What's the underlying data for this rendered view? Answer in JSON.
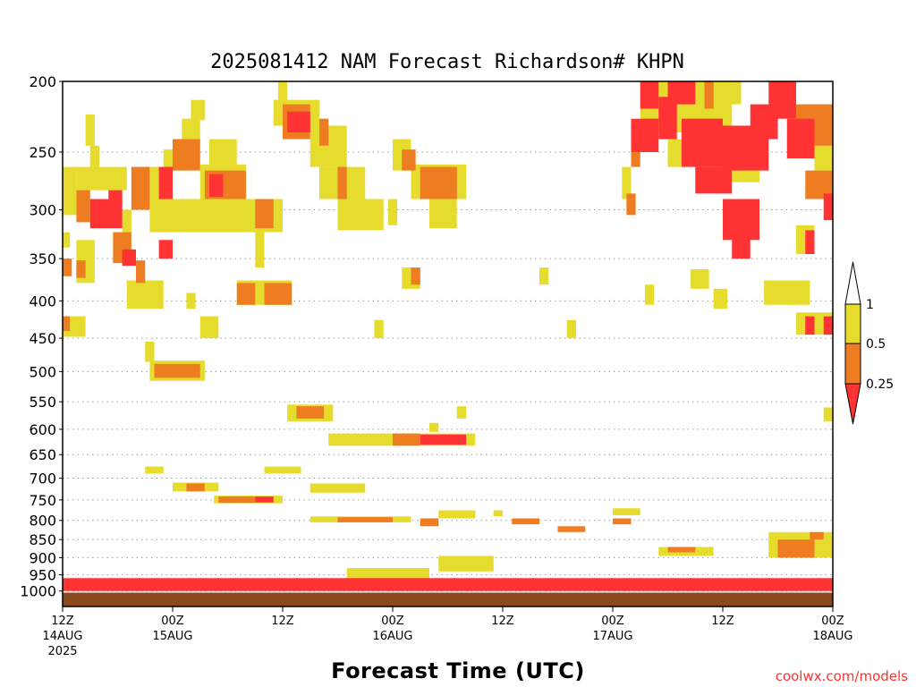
{
  "chart_data": {
    "type": "heatmap",
    "title": "2025081412 NAM Forecast Richardson# KHPN",
    "xlabel": "Forecast Time (UTC)",
    "ylabel": "",
    "credit": "coolwx.com/models",
    "x_range_hours": [
      0,
      84
    ],
    "y_axis": {
      "scale": "log",
      "range_hpa": [
        200,
        1050
      ],
      "ticks": [
        200,
        250,
        300,
        350,
        400,
        450,
        500,
        550,
        600,
        650,
        700,
        750,
        800,
        850,
        900,
        950,
        1000
      ],
      "gridlines": true
    },
    "x_ticks": [
      {
        "hour": 0,
        "lines": [
          "12Z",
          "14AUG",
          "2025"
        ]
      },
      {
        "hour": 12,
        "lines": [
          "00Z",
          "15AUG"
        ]
      },
      {
        "hour": 24,
        "lines": [
          "12Z"
        ]
      },
      {
        "hour": 36,
        "lines": [
          "00Z",
          "16AUG"
        ]
      },
      {
        "hour": 48,
        "lines": [
          "12Z"
        ]
      },
      {
        "hour": 60,
        "lines": [
          "00Z",
          "17AUG"
        ]
      },
      {
        "hour": 72,
        "lines": [
          "12Z"
        ]
      },
      {
        "hour": 84,
        "lines": [
          "00Z",
          "18AUG"
        ]
      }
    ],
    "colorbar": {
      "labels": [
        "1",
        "0.5",
        "0.25"
      ],
      "bins": [
        {
          "label": "<0.25",
          "color": "#ff3333"
        },
        {
          "label": "0.25-0.5",
          "color": "#ee7d22"
        },
        {
          "label": "0.5-1",
          "color": "#e6dc2e"
        },
        {
          "label": ">1",
          "color": "#ffffff"
        }
      ],
      "placement": "right"
    },
    "ground_color": "#8b4a1e",
    "cells": [
      {
        "h0": 0,
        "h1": 1.5,
        "p0": 262,
        "p1": 305,
        "c": "Y"
      },
      {
        "h0": 1.5,
        "h1": 7,
        "p0": 262,
        "p1": 282,
        "c": "Y"
      },
      {
        "h0": 1.5,
        "h1": 3,
        "p0": 282,
        "p1": 312,
        "c": "O"
      },
      {
        "h0": 3,
        "h1": 6.5,
        "p0": 290,
        "p1": 318,
        "c": "R"
      },
      {
        "h0": 5,
        "h1": 6.5,
        "p0": 282,
        "p1": 296,
        "c": "R"
      },
      {
        "h0": 6.5,
        "h1": 7.5,
        "p0": 300,
        "p1": 322,
        "c": "Y"
      },
      {
        "h0": 2.5,
        "h1": 3.5,
        "p0": 222,
        "p1": 245,
        "c": "Y"
      },
      {
        "h0": 3,
        "h1": 4,
        "p0": 245,
        "p1": 262,
        "c": "Y"
      },
      {
        "h0": 1.5,
        "h1": 3.5,
        "p0": 330,
        "p1": 378,
        "c": "Y"
      },
      {
        "h0": 1.5,
        "h1": 2.5,
        "p0": 352,
        "p1": 372,
        "c": "O"
      },
      {
        "h0": 0,
        "h1": 1,
        "p0": 350,
        "p1": 370,
        "c": "O"
      },
      {
        "h0": 0,
        "h1": 0.8,
        "p0": 322,
        "p1": 338,
        "c": "Y"
      },
      {
        "h0": 5.5,
        "h1": 7.5,
        "p0": 322,
        "p1": 355,
        "c": "O"
      },
      {
        "h0": 6.5,
        "h1": 8,
        "p0": 340,
        "p1": 358,
        "c": "R"
      },
      {
        "h0": 7.5,
        "h1": 9.5,
        "p0": 262,
        "p1": 300,
        "c": "O"
      },
      {
        "h0": 9.5,
        "h1": 11,
        "p0": 262,
        "p1": 290,
        "c": "Y"
      },
      {
        "h0": 8,
        "h1": 9,
        "p0": 352,
        "p1": 378,
        "c": "O"
      },
      {
        "h0": 7,
        "h1": 11,
        "p0": 375,
        "p1": 410,
        "c": "Y"
      },
      {
        "h0": 9.5,
        "h1": 24,
        "p0": 290,
        "p1": 322,
        "c": "Y"
      },
      {
        "h0": 10.5,
        "h1": 12,
        "p0": 262,
        "p1": 290,
        "c": "R"
      },
      {
        "h0": 10.5,
        "h1": 12,
        "p0": 330,
        "p1": 350,
        "c": "R"
      },
      {
        "h0": 12,
        "h1": 15,
        "p0": 240,
        "p1": 265,
        "c": "O"
      },
      {
        "h0": 11,
        "h1": 13,
        "p0": 248,
        "p1": 265,
        "c": "Y"
      },
      {
        "h0": 13,
        "h1": 15,
        "p0": 225,
        "p1": 245,
        "c": "Y"
      },
      {
        "h0": 14,
        "h1": 15.5,
        "p0": 212,
        "p1": 226,
        "c": "Y"
      },
      {
        "h0": 15,
        "h1": 20,
        "p0": 260,
        "p1": 290,
        "c": "Y"
      },
      {
        "h0": 15.5,
        "h1": 20,
        "p0": 265,
        "p1": 290,
        "c": "O"
      },
      {
        "h0": 16,
        "h1": 17.5,
        "p0": 268,
        "p1": 288,
        "c": "R"
      },
      {
        "h0": 16,
        "h1": 19,
        "p0": 240,
        "p1": 262,
        "c": "Y"
      },
      {
        "h0": 21,
        "h1": 23,
        "p0": 290,
        "p1": 318,
        "c": "O"
      },
      {
        "h0": 21,
        "h1": 22,
        "p0": 322,
        "p1": 360,
        "c": "Y"
      },
      {
        "h0": 19,
        "h1": 25,
        "p0": 375,
        "p1": 405,
        "c": "Y"
      },
      {
        "h0": 19,
        "h1": 21,
        "p0": 378,
        "p1": 405,
        "c": "O"
      },
      {
        "h0": 22,
        "h1": 25,
        "p0": 378,
        "p1": 405,
        "c": "O"
      },
      {
        "h0": 23,
        "h1": 28,
        "p0": 212,
        "p1": 230,
        "c": "Y"
      },
      {
        "h0": 24,
        "h1": 27,
        "p0": 215,
        "p1": 240,
        "c": "O"
      },
      {
        "h0": 24.5,
        "h1": 27,
        "p0": 220,
        "p1": 235,
        "c": "R"
      },
      {
        "h0": 27,
        "h1": 31,
        "p0": 230,
        "p1": 262,
        "c": "Y"
      },
      {
        "h0": 28,
        "h1": 29,
        "p0": 225,
        "p1": 245,
        "c": "O"
      },
      {
        "h0": 30,
        "h1": 31,
        "p0": 262,
        "p1": 290,
        "c": "O"
      },
      {
        "h0": 28,
        "h1": 33,
        "p0": 262,
        "p1": 290,
        "c": "Y"
      },
      {
        "h0": 30,
        "h1": 35,
        "p0": 290,
        "p1": 320,
        "c": "Y"
      },
      {
        "h0": 23.5,
        "h1": 24.5,
        "p0": 200,
        "p1": 218,
        "c": "Y"
      },
      {
        "h0": 36,
        "h1": 38,
        "p0": 240,
        "p1": 265,
        "c": "Y"
      },
      {
        "h0": 37,
        "h1": 38.5,
        "p0": 248,
        "p1": 265,
        "c": "O"
      },
      {
        "h0": 39,
        "h1": 43,
        "p0": 262,
        "p1": 290,
        "c": "O"
      },
      {
        "h0": 38,
        "h1": 44,
        "p0": 260,
        "p1": 290,
        "c": "Y"
      },
      {
        "h0": 40,
        "h1": 43,
        "p0": 290,
        "p1": 318,
        "c": "Y"
      },
      {
        "h0": 35.5,
        "h1": 36.5,
        "p0": 290,
        "p1": 315,
        "c": "Y"
      },
      {
        "h0": 37,
        "h1": 39,
        "p0": 360,
        "p1": 385,
        "c": "Y"
      },
      {
        "h0": 38,
        "h1": 39,
        "p0": 360,
        "p1": 380,
        "c": "O"
      },
      {
        "h0": 52,
        "h1": 53,
        "p0": 360,
        "p1": 380,
        "c": "Y"
      },
      {
        "h0": 13.5,
        "h1": 14.5,
        "p0": 390,
        "p1": 410,
        "c": "Y"
      },
      {
        "h0": 15,
        "h1": 17,
        "p0": 420,
        "p1": 450,
        "c": "Y"
      },
      {
        "h0": 0,
        "h1": 2.5,
        "p0": 420,
        "p1": 448,
        "c": "Y"
      },
      {
        "h0": 0,
        "h1": 0.8,
        "p0": 420,
        "p1": 440,
        "c": "O"
      },
      {
        "h0": 34,
        "h1": 35,
        "p0": 425,
        "p1": 450,
        "c": "Y"
      },
      {
        "h0": 55,
        "h1": 56,
        "p0": 425,
        "p1": 450,
        "c": "Y"
      },
      {
        "h0": 9,
        "h1": 10,
        "p0": 455,
        "p1": 485,
        "c": "Y"
      },
      {
        "h0": 9.5,
        "h1": 15.5,
        "p0": 483,
        "p1": 515,
        "c": "Y"
      },
      {
        "h0": 10,
        "h1": 15,
        "p0": 488,
        "p1": 510,
        "c": "O"
      },
      {
        "h0": 24.5,
        "h1": 29.5,
        "p0": 555,
        "p1": 585,
        "c": "Y"
      },
      {
        "h0": 25.5,
        "h1": 28.5,
        "p0": 558,
        "p1": 580,
        "c": "O"
      },
      {
        "h0": 43,
        "h1": 44,
        "p0": 558,
        "p1": 580,
        "c": "Y"
      },
      {
        "h0": 29,
        "h1": 45,
        "p0": 608,
        "p1": 632,
        "c": "Y"
      },
      {
        "h0": 36,
        "h1": 39,
        "p0": 608,
        "p1": 632,
        "c": "O"
      },
      {
        "h0": 39,
        "h1": 44,
        "p0": 610,
        "p1": 630,
        "c": "R"
      },
      {
        "h0": 40,
        "h1": 41,
        "p0": 588,
        "p1": 605,
        "c": "Y"
      },
      {
        "h0": 9,
        "h1": 11,
        "p0": 675,
        "p1": 690,
        "c": "Y"
      },
      {
        "h0": 22,
        "h1": 26,
        "p0": 675,
        "p1": 690,
        "c": "Y"
      },
      {
        "h0": 12,
        "h1": 17,
        "p0": 710,
        "p1": 730,
        "c": "Y"
      },
      {
        "h0": 13.5,
        "h1": 15.5,
        "p0": 712,
        "p1": 730,
        "c": "O"
      },
      {
        "h0": 27,
        "h1": 33,
        "p0": 712,
        "p1": 733,
        "c": "Y"
      },
      {
        "h0": 16.5,
        "h1": 24,
        "p0": 740,
        "p1": 758,
        "c": "Y"
      },
      {
        "h0": 17,
        "h1": 21,
        "p0": 742,
        "p1": 757,
        "c": "O"
      },
      {
        "h0": 21,
        "h1": 23,
        "p0": 742,
        "p1": 756,
        "c": "R"
      },
      {
        "h0": 27,
        "h1": 38,
        "p0": 790,
        "p1": 805,
        "c": "Y"
      },
      {
        "h0": 30,
        "h1": 36,
        "p0": 792,
        "p1": 805,
        "c": "O"
      },
      {
        "h0": 39,
        "h1": 41,
        "p0": 795,
        "p1": 815,
        "c": "O"
      },
      {
        "h0": 41,
        "h1": 45,
        "p0": 775,
        "p1": 795,
        "c": "Y"
      },
      {
        "h0": 49,
        "h1": 52,
        "p0": 795,
        "p1": 810,
        "c": "O"
      },
      {
        "h0": 54,
        "h1": 57,
        "p0": 815,
        "p1": 830,
        "c": "O"
      },
      {
        "h0": 60,
        "h1": 63,
        "p0": 770,
        "p1": 787,
        "c": "Y"
      },
      {
        "h0": 60,
        "h1": 62,
        "p0": 795,
        "p1": 810,
        "c": "O"
      },
      {
        "h0": 47,
        "h1": 48,
        "p0": 775,
        "p1": 790,
        "c": "Y"
      },
      {
        "h0": 44,
        "h1": 45,
        "p0": 775,
        "p1": 790,
        "c": "Y"
      },
      {
        "h0": 63,
        "h1": 73,
        "p0": 200,
        "p1": 235,
        "c": "Y"
      },
      {
        "h0": 63,
        "h1": 65,
        "p0": 200,
        "p1": 218,
        "c": "R"
      },
      {
        "h0": 65,
        "h1": 67,
        "p0": 210,
        "p1": 240,
        "c": "R"
      },
      {
        "h0": 66,
        "h1": 69,
        "p0": 200,
        "p1": 215,
        "c": "R"
      },
      {
        "h0": 67.5,
        "h1": 72,
        "p0": 225,
        "p1": 262,
        "c": "R"
      },
      {
        "h0": 69,
        "h1": 73,
        "p0": 262,
        "p1": 285,
        "c": "R"
      },
      {
        "h0": 62,
        "h1": 65,
        "p0": 225,
        "p1": 250,
        "c": "R"
      },
      {
        "h0": 62,
        "h1": 63,
        "p0": 250,
        "p1": 262,
        "c": "O"
      },
      {
        "h0": 66,
        "h1": 68,
        "p0": 240,
        "p1": 262,
        "c": "Y"
      },
      {
        "h0": 70,
        "h1": 71,
        "p0": 200,
        "p1": 218,
        "c": "O"
      },
      {
        "h0": 72,
        "h1": 74,
        "p0": 200,
        "p1": 215,
        "c": "Y"
      },
      {
        "h0": 72,
        "h1": 77,
        "p0": 230,
        "p1": 265,
        "c": "R"
      },
      {
        "h0": 73,
        "h1": 76,
        "p0": 255,
        "p1": 275,
        "c": "Y"
      },
      {
        "h0": 75,
        "h1": 78,
        "p0": 215,
        "p1": 240,
        "c": "R"
      },
      {
        "h0": 77,
        "h1": 80,
        "p0": 200,
        "p1": 225,
        "c": "R"
      },
      {
        "h0": 79,
        "h1": 82,
        "p0": 225,
        "p1": 255,
        "c": "R"
      },
      {
        "h0": 80,
        "h1": 84,
        "p0": 215,
        "p1": 245,
        "c": "O"
      },
      {
        "h0": 82,
        "h1": 84,
        "p0": 245,
        "p1": 265,
        "c": "Y"
      },
      {
        "h0": 81,
        "h1": 84,
        "p0": 265,
        "p1": 290,
        "c": "O"
      },
      {
        "h0": 72,
        "h1": 76,
        "p0": 290,
        "p1": 330,
        "c": "R"
      },
      {
        "h0": 73,
        "h1": 75,
        "p0": 320,
        "p1": 350,
        "c": "R"
      },
      {
        "h0": 61.5,
        "h1": 62.5,
        "p0": 285,
        "p1": 305,
        "c": "O"
      },
      {
        "h0": 61,
        "h1": 62,
        "p0": 262,
        "p1": 290,
        "c": "Y"
      },
      {
        "h0": 80,
        "h1": 82,
        "p0": 315,
        "p1": 345,
        "c": "Y"
      },
      {
        "h0": 81,
        "h1": 82,
        "p0": 320,
        "p1": 345,
        "c": "R"
      },
      {
        "h0": 83,
        "h1": 84,
        "p0": 285,
        "p1": 310,
        "c": "R"
      },
      {
        "h0": 76.5,
        "h1": 81.5,
        "p0": 375,
        "p1": 405,
        "c": "Y"
      },
      {
        "h0": 68.5,
        "h1": 70.5,
        "p0": 362,
        "p1": 385,
        "c": "Y"
      },
      {
        "h0": 71,
        "h1": 72.5,
        "p0": 385,
        "p1": 410,
        "c": "Y"
      },
      {
        "h0": 63.5,
        "h1": 64.5,
        "p0": 380,
        "p1": 405,
        "c": "Y"
      },
      {
        "h0": 80,
        "h1": 84,
        "p0": 415,
        "p1": 445,
        "c": "Y"
      },
      {
        "h0": 81,
        "h1": 82,
        "p0": 420,
        "p1": 445,
        "c": "R"
      },
      {
        "h0": 83,
        "h1": 84,
        "p0": 420,
        "p1": 445,
        "c": "R"
      },
      {
        "h0": 83,
        "h1": 84,
        "p0": 560,
        "p1": 585,
        "c": "Y"
      },
      {
        "h0": 77,
        "h1": 84,
        "p0": 830,
        "p1": 900,
        "c": "Y"
      },
      {
        "h0": 78,
        "h1": 82,
        "p0": 850,
        "p1": 900,
        "c": "O"
      },
      {
        "h0": 81.5,
        "h1": 83,
        "p0": 830,
        "p1": 850,
        "c": "O"
      },
      {
        "h0": 65,
        "h1": 71,
        "p0": 870,
        "p1": 895,
        "c": "Y"
      },
      {
        "h0": 66,
        "h1": 69,
        "p0": 870,
        "p1": 885,
        "c": "O"
      },
      {
        "h0": 41,
        "h1": 47,
        "p0": 895,
        "p1": 940,
        "c": "Y"
      },
      {
        "h0": 31,
        "h1": 40,
        "p0": 930,
        "p1": 990,
        "c": "Y"
      },
      {
        "h0": 0,
        "h1": 84,
        "p0": 960,
        "p1": 1000,
        "c": "R"
      }
    ]
  }
}
